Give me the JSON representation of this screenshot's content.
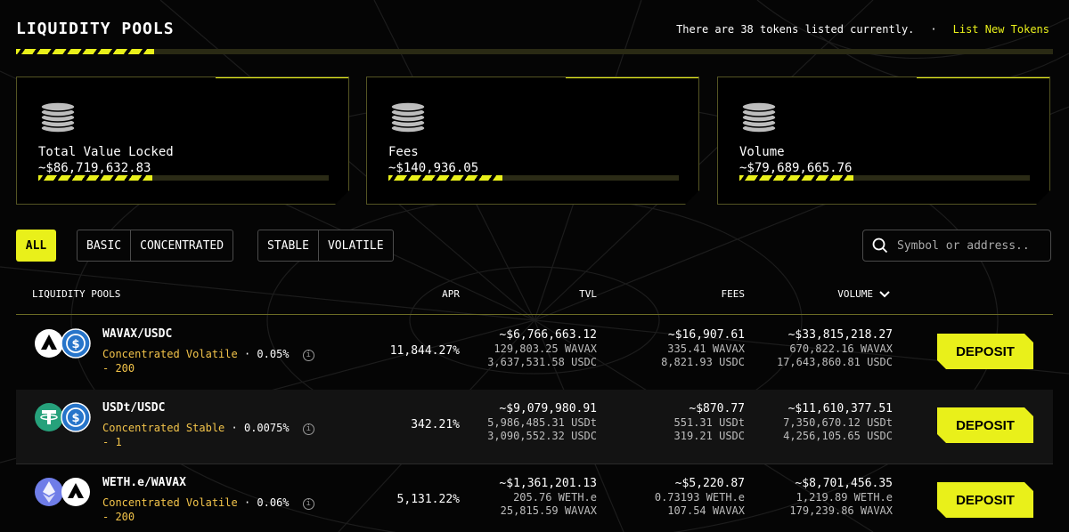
{
  "header": {
    "title": "LIQUIDITY POOLS",
    "tokens_text": "There are 38 tokens listed currently.",
    "separator": "·",
    "list_link": "List New Tokens"
  },
  "stats": [
    {
      "label": "Total Value Locked",
      "value": "~$86,719,632.83",
      "icon": "coins-icon"
    },
    {
      "label": "Fees",
      "value": "~$140,936.05",
      "icon": "coins-icon"
    },
    {
      "label": "Volume",
      "value": "~$79,689,665.76",
      "icon": "coins-icon"
    }
  ],
  "filters": {
    "all": "ALL",
    "basic": "BASIC",
    "concentrated": "CONCENTRATED",
    "stable": "STABLE",
    "volatile": "VOLATILE"
  },
  "search": {
    "placeholder": "Symbol or address..",
    "icon": "search-icon"
  },
  "table": {
    "headers": {
      "pools": "LIQUIDITY POOLS",
      "apr": "APR",
      "tvl": "TVL",
      "fees": "FEES",
      "volume": "VOLUME"
    },
    "sort_icon": "chevron-down-icon",
    "rows": [
      {
        "pair": "WAVAX/USDC",
        "type": "Concentrated Volatile",
        "fee": "0.05%",
        "tick": "- 200",
        "apr": "11,844.27%",
        "tvl": {
          "main": "~$6,766,663.12",
          "sub1": "129,803.25 WAVAX",
          "sub2": "3,637,531.58 USDC"
        },
        "fees": {
          "main": "~$16,907.61",
          "sub1": "335.41 WAVAX",
          "sub2": "8,821.93 USDC"
        },
        "volume": {
          "main": "~$33,815,218.27",
          "sub1": "670,822.16 WAVAX",
          "sub2": "17,643,860.81 USDC"
        },
        "deposit": "DEPOSIT",
        "icons": [
          "avax-icon",
          "usdc-icon"
        ]
      },
      {
        "pair": "USDt/USDC",
        "type": "Concentrated Stable",
        "fee": "0.0075%",
        "tick": "- 1",
        "apr": "342.21%",
        "tvl": {
          "main": "~$9,079,980.91",
          "sub1": "5,986,485.31 USDt",
          "sub2": "3,090,552.32 USDC"
        },
        "fees": {
          "main": "~$870.77",
          "sub1": "551.31 USDt",
          "sub2": "319.21 USDC"
        },
        "volume": {
          "main": "~$11,610,377.51",
          "sub1": "7,350,670.12 USDt",
          "sub2": "4,256,105.65 USDC"
        },
        "deposit": "DEPOSIT",
        "icons": [
          "tether-icon",
          "usdc-icon"
        ]
      },
      {
        "pair": "WETH.e/WAVAX",
        "type": "Concentrated Volatile",
        "fee": "0.06%",
        "tick": "- 200",
        "apr": "5,131.22%",
        "tvl": {
          "main": "~$1,361,201.13",
          "sub1": "205.76 WETH.e",
          "sub2": "25,815.59 WAVAX"
        },
        "fees": {
          "main": "~$5,220.87",
          "sub1": "0.73193 WETH.e",
          "sub2": "107.54 WAVAX"
        },
        "volume": {
          "main": "~$8,701,456.35",
          "sub1": "1,219.89 WETH.e",
          "sub2": "179,239.86 WAVAX"
        },
        "deposit": "DEPOSIT",
        "icons": [
          "ethereum-icon",
          "avax-icon"
        ]
      }
    ]
  },
  "colors": {
    "accent": "#e9f01a",
    "type_text": "#f3c44a",
    "background": "#050505"
  }
}
